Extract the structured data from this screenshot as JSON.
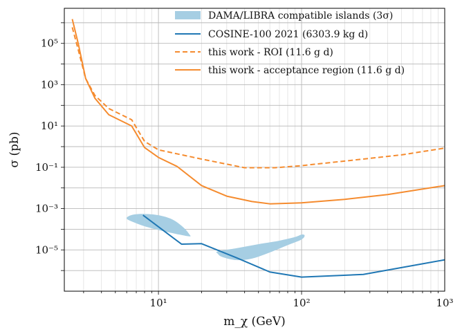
{
  "chart_data": {
    "type": "line",
    "title": "",
    "xlabel": "m_χ (GeV)",
    "ylabel": "σ (pb)",
    "xscale": "log",
    "yscale": "log",
    "xlim": [
      2.2,
      1000
    ],
    "ylim": [
      1e-07,
      5000000.0
    ],
    "grid": true,
    "legend_position": "top-right",
    "x_ticks": [
      {
        "value": 10,
        "label": "10¹"
      },
      {
        "value": 100,
        "label": "10²"
      },
      {
        "value": 1000,
        "label": "10³"
      }
    ],
    "y_ticks": [
      {
        "value": 100000.0,
        "label": "10⁵"
      },
      {
        "value": 1000.0,
        "label": "10³"
      },
      {
        "value": 10,
        "label": "10¹"
      },
      {
        "value": 0.1,
        "label": "10⁻¹"
      },
      {
        "value": 0.001,
        "label": "10⁻³"
      },
      {
        "value": 1e-05,
        "label": "10⁻⁵"
      }
    ],
    "series": [
      {
        "name": "DAMA/LIBRA compatible islands (3σ)",
        "kind": "region",
        "color": "#a6cee3",
        "regions": [
          [
            [
              6.2,
              0.00043
            ],
            [
              6.8,
              0.00052
            ],
            [
              8,
              0.00055
            ],
            [
              10,
              0.00048
            ],
            [
              12.5,
              0.0003
            ],
            [
              15,
              0.00012
            ],
            [
              16.5,
              5.5e-05
            ],
            [
              16.5,
              4.5e-05
            ],
            [
              14,
              5.5e-05
            ],
            [
              10.5,
              8.5e-05
            ],
            [
              8,
              0.00014
            ],
            [
              6.5,
              0.00024
            ],
            [
              6,
              0.00033
            ]
          ],
          [
            [
              26,
              8.5e-06
            ],
            [
              35,
              1.2e-05
            ],
            [
              50,
              1.9e-05
            ],
            [
              70,
              2.8e-05
            ],
            [
              90,
              4.2e-05
            ],
            [
              100,
              5.5e-05
            ],
            [
              105,
              5e-05
            ],
            [
              100,
              3.2e-05
            ],
            [
              80,
              1.7e-05
            ],
            [
              60,
              7.5e-06
            ],
            [
              45,
              3.8e-06
            ],
            [
              35,
              3.2e-06
            ],
            [
              28,
              4.5e-06
            ],
            [
              26,
              6.5e-06
            ]
          ]
        ]
      },
      {
        "name": "COSINE-100 2021 (6303.9 kg d)",
        "kind": "line",
        "color": "#1f77b4",
        "dash": "solid",
        "points": [
          [
            7.8,
            0.00048
          ],
          [
            14.5,
            1.9e-05
          ],
          [
            20,
            2e-05
          ],
          [
            35,
            4.2e-06
          ],
          [
            60,
            8.5e-07
          ],
          [
            100,
            4.8e-07
          ],
          [
            270,
            6.5e-07
          ],
          [
            1000,
            3.3e-06
          ]
        ]
      },
      {
        "name": "this work - ROI (11.6 g d)",
        "kind": "line",
        "color": "#f58b2e",
        "dash": "dashed",
        "points": [
          [
            2.5,
            600000
          ],
          [
            2.75,
            50000
          ],
          [
            3.1,
            2000
          ],
          [
            3.6,
            300
          ],
          [
            4.5,
            70
          ],
          [
            6.5,
            20
          ],
          [
            8,
            1.8
          ],
          [
            10,
            0.7
          ],
          [
            20,
            0.25
          ],
          [
            40,
            0.095
          ],
          [
            65,
            0.095
          ],
          [
            100,
            0.12
          ],
          [
            200,
            0.2
          ],
          [
            500,
            0.4
          ],
          [
            1000,
            0.85
          ]
        ]
      },
      {
        "name": "this work - acceptance region (11.6 g d)",
        "kind": "line",
        "color": "#f58b2e",
        "dash": "solid",
        "points": [
          [
            2.5,
            1500000
          ],
          [
            2.75,
            100000
          ],
          [
            3.1,
            2000
          ],
          [
            3.6,
            220
          ],
          [
            4.5,
            35
          ],
          [
            6.5,
            10
          ],
          [
            8,
            0.9
          ],
          [
            10,
            0.3
          ],
          [
            13.5,
            0.11
          ],
          [
            20,
            0.013
          ],
          [
            30,
            0.004
          ],
          [
            45,
            0.0022
          ],
          [
            60,
            0.0017
          ],
          [
            100,
            0.0019
          ],
          [
            200,
            0.0028
          ],
          [
            400,
            0.0048
          ],
          [
            1000,
            0.013
          ]
        ]
      }
    ]
  }
}
